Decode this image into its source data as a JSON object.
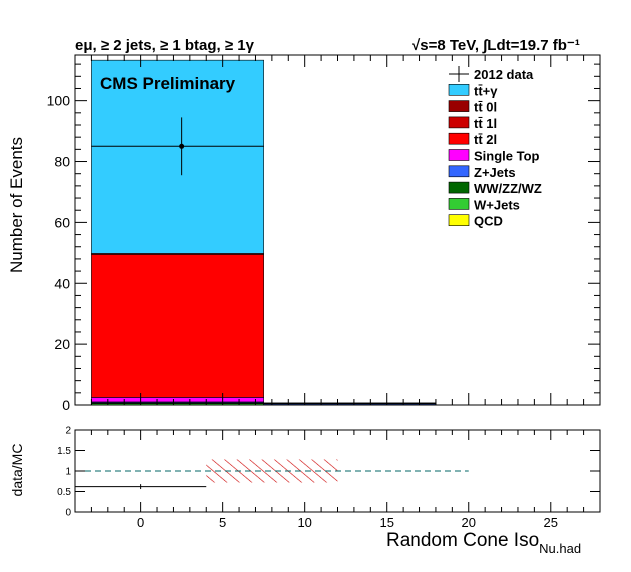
{
  "chart_data": [
    {
      "type": "bar",
      "stacked": true,
      "title_left": "eμ, ≥ 2 jets, ≥ 1 btag, ≥ 1γ",
      "title_right": "√s=8 TeV,  ∫Ldt=19.7 fb⁻¹",
      "label": "CMS Preliminary",
      "ylabel": "Number of Events",
      "xlim": [
        -4,
        28
      ],
      "ylim": [
        0,
        115
      ],
      "yticks": [
        0,
        20,
        40,
        60,
        80,
        100
      ],
      "bins": [
        [
          -3,
          7.5
        ],
        [
          7.5,
          18
        ]
      ],
      "series": [
        {
          "name": "tt̄+γ",
          "color": "#33ccff",
          "values": [
            63.5,
            0.1
          ]
        },
        {
          "name": "tt̄ 0l",
          "color": "#990000",
          "values": [
            0.0,
            0.0
          ]
        },
        {
          "name": "tt̄ 1l",
          "color": "#cc0000",
          "values": [
            0.3,
            0.0
          ]
        },
        {
          "name": "tt̄ 2l",
          "color": "#ff0000",
          "values": [
            47.0,
            0.2
          ]
        },
        {
          "name": "Single Top",
          "color": "#ff00ff",
          "values": [
            1.5,
            0.0
          ]
        },
        {
          "name": "Z+Jets",
          "color": "#3366ff",
          "values": [
            0.3,
            0.3
          ]
        },
        {
          "name": "WW/ZZ/WZ",
          "color": "#006600",
          "values": [
            0.3,
            0.1
          ]
        },
        {
          "name": "W+Jets",
          "color": "#33cc33",
          "values": [
            0.4,
            0.0
          ]
        },
        {
          "name": "QCD",
          "color": "#ffff00",
          "values": [
            0.0,
            0.0
          ]
        }
      ],
      "data_series": {
        "name": "2012 data",
        "points": [
          {
            "x": 2.5,
            "y": 85,
            "yerr_low": 9.5,
            "yerr_high": 9.5,
            "xlow": -3,
            "xhigh": 7.5
          }
        ]
      },
      "legend_position": "top-right"
    },
    {
      "type": "scatter",
      "ylabel": "data/MC",
      "xlabel": "Random Cone Iso",
      "xlabel_sub": "Nu.had",
      "xlim": [
        -4,
        28
      ],
      "ylim": [
        0,
        2
      ],
      "xticks": [
        0,
        5,
        10,
        15,
        20,
        25
      ],
      "yticks": [
        0,
        0.5,
        1,
        1.5,
        2
      ],
      "reference_line": {
        "y": 1,
        "x": [
          -4,
          20
        ]
      },
      "points": [
        {
          "x": 0,
          "y": 0.62,
          "xlow": -4,
          "xhigh": 4,
          "yerr": 0.06
        }
      ],
      "uncertainty_band": [
        {
          "x": [
            4,
            12
          ],
          "y": [
            0.72,
            1.28
          ]
        }
      ]
    }
  ]
}
